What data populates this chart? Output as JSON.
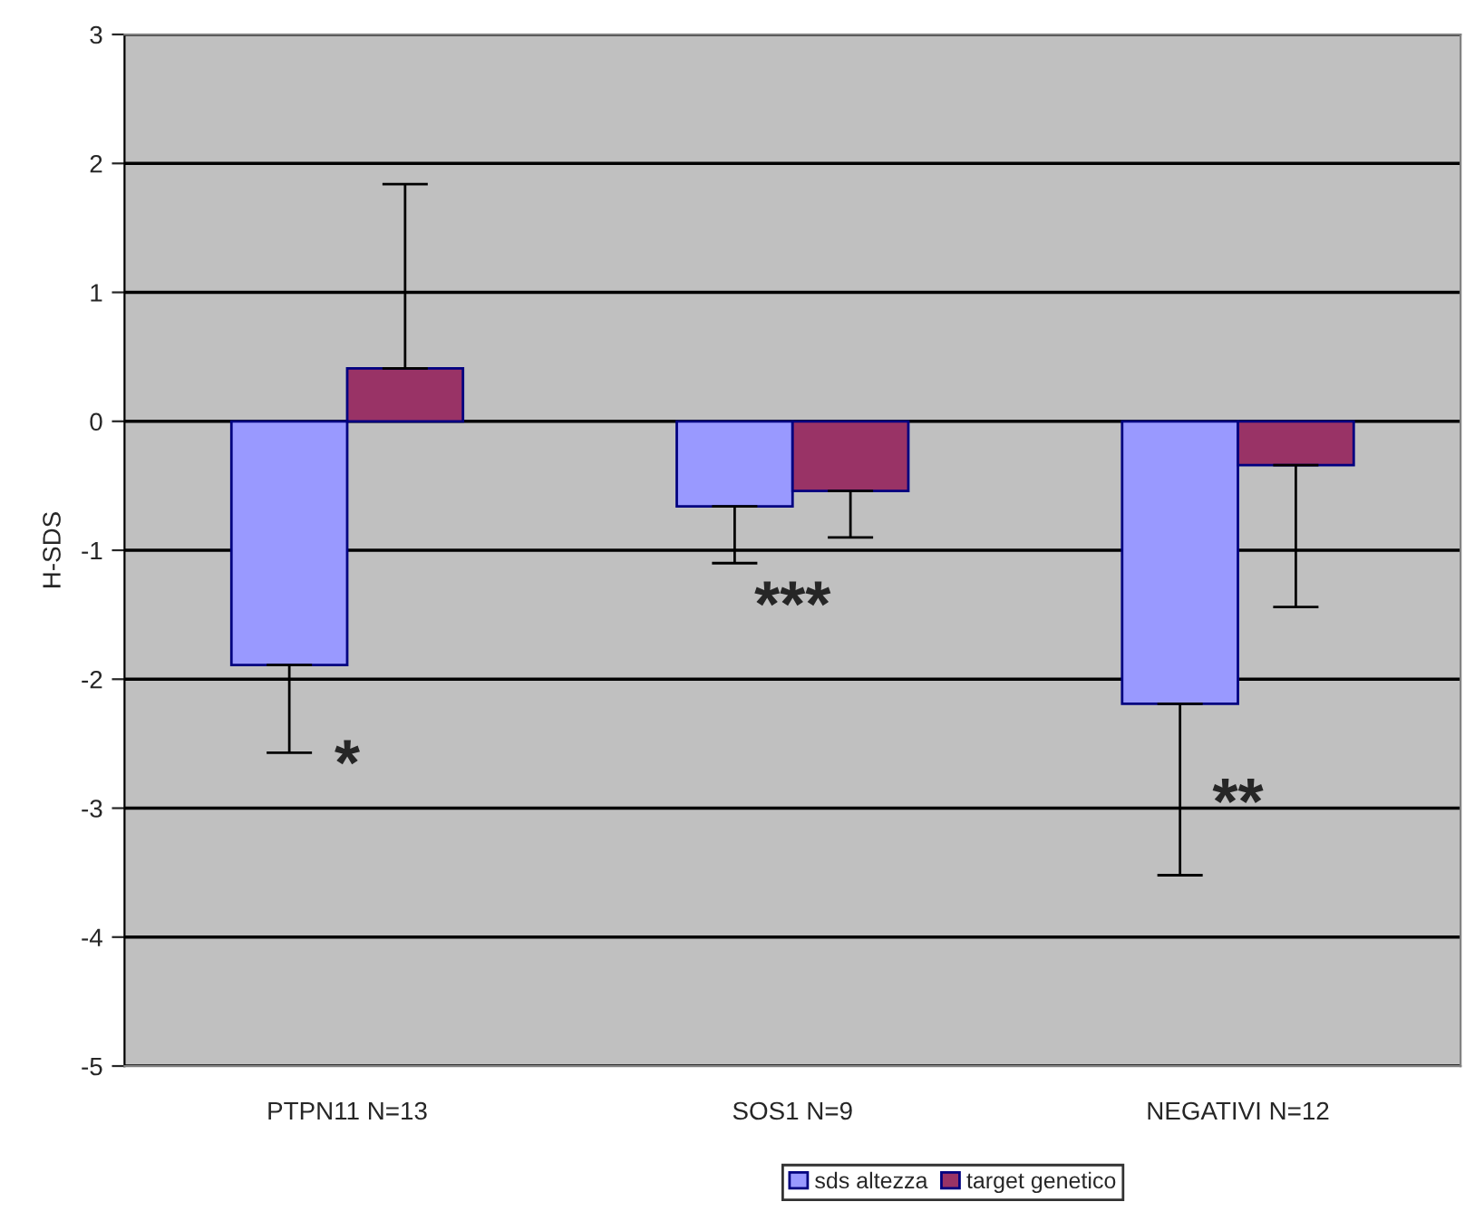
{
  "chart_data": {
    "type": "bar",
    "ylabel": "H-SDS",
    "categories": [
      "PTPN11 N=13",
      "SOS1 N=9",
      "NEGATIVI N=12"
    ],
    "series": [
      {
        "name": "sds altezza",
        "color": "#9999ff",
        "values": [
          -1.89,
          -0.66,
          -2.19
        ],
        "errors": [
          [
            -2.57,
            -1.89
          ],
          [
            -1.1,
            -0.66
          ],
          [
            -3.52,
            -2.19
          ]
        ]
      },
      {
        "name": "target genetico",
        "color": "#993366",
        "values": [
          0.41,
          -0.54,
          -0.34
        ],
        "errors": [
          [
            0.41,
            1.84
          ],
          [
            -0.9,
            -0.54
          ],
          [
            -1.44,
            -0.34
          ]
        ]
      }
    ],
    "ylim": [
      -5,
      3
    ],
    "yticks": [
      -5,
      -4,
      -3,
      -2,
      -1,
      0,
      1,
      2,
      3
    ],
    "grid": "y",
    "legend": "bottom",
    "annotations": [
      "*",
      "***",
      "**"
    ]
  }
}
